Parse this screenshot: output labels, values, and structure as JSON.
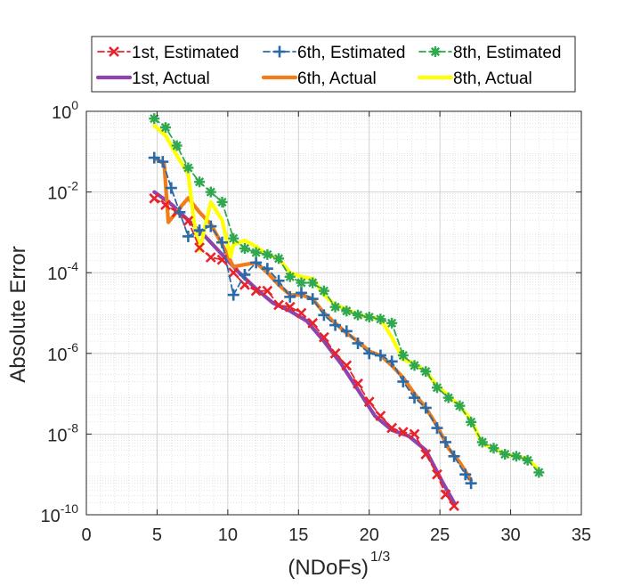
{
  "chart_data": {
    "type": "line",
    "xlabel_base": "(NDoFs)",
    "xlabel_sup": "1/3",
    "ylabel": "Absolute Error",
    "xlim": [
      0,
      35
    ],
    "ylim_log10": [
      -10,
      0
    ],
    "y_scale": "log",
    "grid": true,
    "minor_grid": true,
    "legend_placement": "top",
    "x_ticks": [
      0,
      5,
      10,
      15,
      20,
      25,
      30,
      35
    ],
    "y_tick_exponents": [
      0,
      -2,
      -4,
      -6,
      -8,
      -10
    ],
    "y_tick_base": "10",
    "series": [
      {
        "name": "1st, Estimated",
        "color": "#e8232b",
        "style": "dashed",
        "marker": "x",
        "x": [
          4.8,
          5.6,
          6.4,
          7.2,
          8.0,
          8.8,
          9.6,
          10.4,
          11.2,
          12.0,
          12.8,
          13.6,
          14.4,
          15.2,
          16.0,
          16.8,
          17.6,
          18.4,
          19.2,
          20.0,
          20.8,
          21.6,
          22.4,
          23.2,
          24.0,
          24.8,
          25.4,
          26.0
        ],
        "y": [
          -2.16,
          -2.32,
          -2.5,
          -2.72,
          -3.38,
          -3.62,
          -3.68,
          -4.0,
          -4.3,
          -4.45,
          -4.45,
          -4.8,
          -4.85,
          -5.0,
          -5.25,
          -5.6,
          -6.0,
          -6.3,
          -6.75,
          -7.2,
          -7.55,
          -7.85,
          -7.95,
          -8.0,
          -8.5,
          -9.0,
          -9.5,
          -9.78
        ]
      },
      {
        "name": "6th, Estimated",
        "color": "#2b6aa8",
        "style": "dashed",
        "marker": "+",
        "x": [
          4.8,
          5.4,
          6.0,
          6.6,
          7.2,
          8.0,
          8.8,
          9.6,
          10.4,
          11.2,
          12.0,
          12.8,
          13.6,
          14.4,
          15.2,
          16.0,
          16.8,
          17.6,
          18.4,
          19.2,
          20.0,
          20.8,
          21.6,
          22.4,
          23.2,
          24.0,
          24.8,
          25.4,
          26.0,
          26.8,
          27.2
        ],
        "y": [
          -1.15,
          -1.25,
          -1.9,
          -2.5,
          -3.1,
          -2.95,
          -2.85,
          -3.25,
          -4.55,
          -4.05,
          -3.75,
          -3.9,
          -4.2,
          -4.6,
          -4.5,
          -4.65,
          -5.05,
          -5.3,
          -5.45,
          -5.75,
          -6.0,
          -6.05,
          -6.2,
          -6.7,
          -7.1,
          -7.35,
          -7.85,
          -8.2,
          -8.55,
          -9.0,
          -9.22
        ]
      },
      {
        "name": "8th, Estimated",
        "color": "#2fa84f",
        "style": "dashed",
        "marker": "*",
        "x": [
          4.8,
          5.6,
          6.4,
          7.2,
          8.0,
          8.8,
          9.6,
          10.4,
          11.2,
          12.0,
          12.8,
          13.6,
          14.4,
          15.2,
          16.0,
          16.8,
          17.6,
          18.4,
          19.2,
          20.0,
          20.8,
          21.6,
          22.4,
          23.2,
          24.0,
          24.8,
          25.6,
          26.4,
          27.2,
          28.0,
          28.8,
          29.6,
          30.4,
          31.2,
          32.0
        ],
        "y": [
          -0.18,
          -0.4,
          -0.85,
          -1.4,
          -1.75,
          -2.0,
          -2.25,
          -3.15,
          -3.4,
          -3.5,
          -3.55,
          -3.65,
          -4.1,
          -4.25,
          -4.25,
          -4.45,
          -4.85,
          -4.95,
          -5.05,
          -5.1,
          -5.15,
          -5.25,
          -6.05,
          -6.3,
          -6.45,
          -6.85,
          -7.1,
          -7.3,
          -7.7,
          -8.2,
          -8.35,
          -8.5,
          -8.55,
          -8.65,
          -8.95
        ]
      },
      {
        "name": "1st, Actual",
        "color": "#8e44ad",
        "style": "solid",
        "marker": "none",
        "x": [
          4.8,
          6.0,
          7.2,
          8.4,
          9.6,
          10.8,
          12.0,
          13.2,
          14.4,
          15.6,
          16.8,
          18.0,
          19.2,
          20.4,
          21.6,
          22.8,
          24.0,
          25.2,
          26.0
        ],
        "y": [
          -2.0,
          -2.3,
          -2.7,
          -3.1,
          -3.55,
          -4.0,
          -4.4,
          -4.75,
          -4.95,
          -5.2,
          -5.7,
          -6.25,
          -6.9,
          -7.55,
          -7.9,
          -8.05,
          -8.4,
          -9.2,
          -9.7
        ]
      },
      {
        "name": "6th, Actual",
        "color": "#f07d1a",
        "style": "solid",
        "marker": "none",
        "x": [
          4.8,
          5.5,
          5.8,
          6.6,
          7.2,
          8.0,
          8.8,
          9.6,
          10.4,
          11.2,
          12.0,
          12.8,
          13.6,
          14.4,
          15.2,
          16.0,
          16.8,
          17.6,
          18.4,
          19.2,
          20.0,
          20.8,
          21.6,
          22.4,
          23.2,
          24.0,
          24.8,
          25.6,
          26.4,
          27.2
        ],
        "y": [
          -1.15,
          -1.3,
          -2.75,
          -2.4,
          -2.15,
          -2.5,
          -2.8,
          -3.3,
          -3.85,
          -3.8,
          -3.75,
          -4.0,
          -4.3,
          -4.55,
          -4.55,
          -4.65,
          -5.0,
          -5.25,
          -5.5,
          -5.7,
          -5.95,
          -6.05,
          -6.3,
          -6.6,
          -7.0,
          -7.35,
          -7.8,
          -8.35,
          -8.7,
          -9.15
        ]
      },
      {
        "name": "8th, Actual",
        "color": "#ffff00",
        "style": "solid",
        "marker": "none",
        "x": [
          4.8,
          5.6,
          6.4,
          7.2,
          7.6,
          8.0,
          8.8,
          9.6,
          10.2,
          10.4,
          11.2,
          12.0,
          12.8,
          13.6,
          14.4,
          15.2,
          16.0,
          16.8,
          17.6,
          18.4,
          19.2,
          20.0,
          20.8,
          21.6,
          22.4,
          23.2,
          24.0,
          24.8,
          25.6,
          26.4,
          27.2,
          28.0,
          28.8,
          29.6,
          30.4,
          31.2,
          32.0
        ],
        "y": [
          -0.35,
          -0.6,
          -1.1,
          -1.55,
          -2.7,
          -3.45,
          -2.25,
          -2.7,
          -3.6,
          -3.3,
          -3.2,
          -3.35,
          -3.55,
          -3.65,
          -4.0,
          -4.1,
          -4.15,
          -4.55,
          -4.8,
          -4.9,
          -5.05,
          -5.1,
          -5.15,
          -5.6,
          -6.15,
          -6.25,
          -6.45,
          -6.8,
          -7.05,
          -7.3,
          -7.65,
          -8.25,
          -8.35,
          -8.5,
          -8.55,
          -8.6,
          -8.9
        ]
      }
    ]
  }
}
